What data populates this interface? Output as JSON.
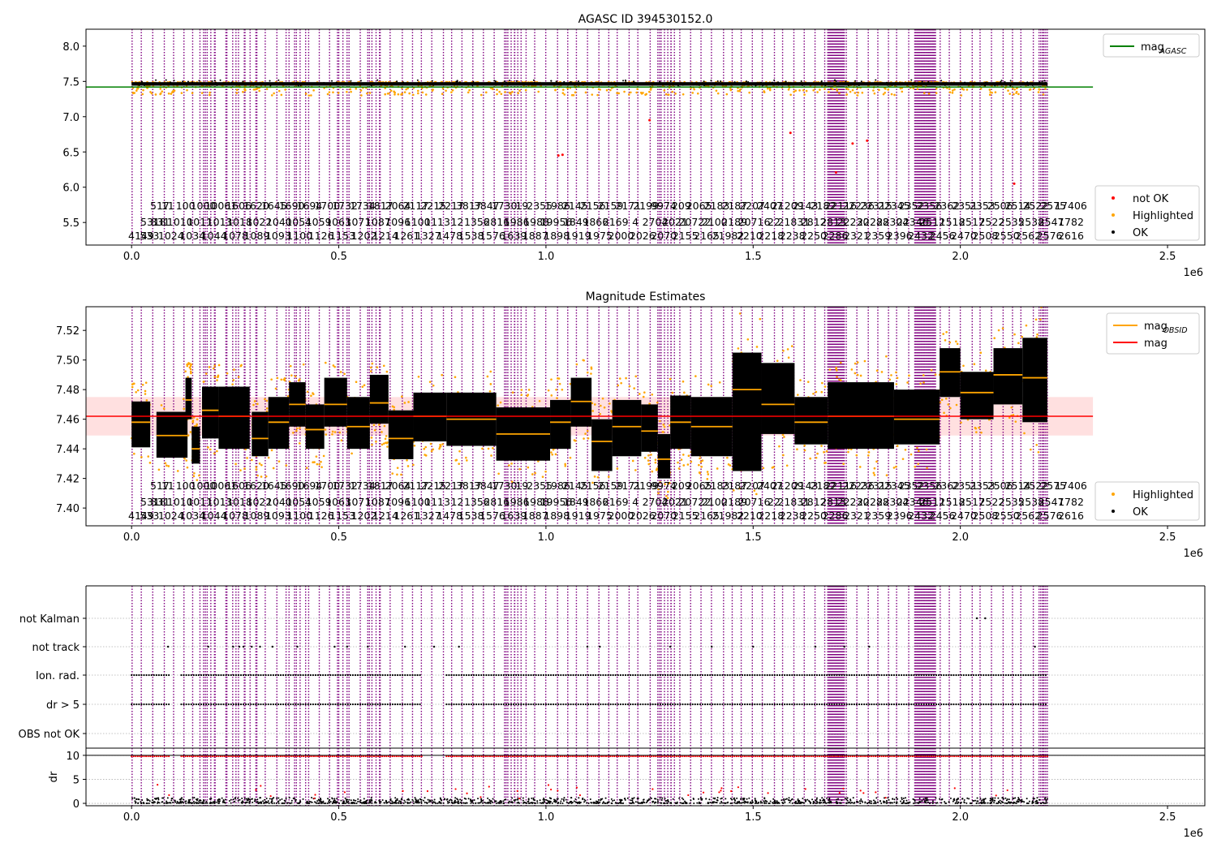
{
  "colors": {
    "ok": "#000000",
    "highlighted": "#ffa500",
    "not_ok": "#ff0000",
    "obsid_lines": "#800080",
    "mag_agasc": "#008000",
    "mag_obsid": "#ffa500",
    "mag": "#ff0000",
    "mag_band": "#ffcccc",
    "grid": "#b0b0b0"
  },
  "obsid_label_rows": {
    "row1": [
      "517",
      "11",
      "100",
      "1000",
      "10061",
      "1606",
      "1620",
      "1645",
      "1690",
      "1694",
      "1700",
      "1732",
      "1734",
      "1817",
      "2064",
      "2117",
      "2215",
      "2217",
      "3817",
      "3847",
      "1730",
      "19",
      "2355",
      "1986",
      "2145",
      "2156",
      "2159",
      "2171",
      "2199",
      "9974",
      "209",
      "2065",
      "2183",
      "2187",
      "2207",
      "2407",
      "21209",
      "2143",
      "2182",
      "22116",
      "22236",
      "22315",
      "22345",
      "2352",
      "2356",
      "2362",
      "2351",
      "2353",
      "2506",
      "2514",
      "2522",
      "2575",
      "17406"
    ],
    "row2": [
      "5318",
      "831",
      "1010",
      "1011",
      "1013",
      "1018",
      "1022",
      "1040",
      "1054",
      "1059",
      "1063",
      "1071",
      "1087",
      "1096",
      "1100",
      "1113",
      "12",
      "1356",
      "2816",
      "1986",
      "1988",
      "19956",
      "1849",
      "1866",
      "2169",
      "4",
      "2704",
      "2021",
      "20722",
      "2100",
      "2189",
      "20716",
      "22",
      "21831",
      "2812",
      "2813",
      "22230",
      "22288",
      "22304",
      "22346",
      "2512",
      "1518",
      "2517",
      "2522",
      "2535",
      "2538",
      "2547",
      "1782"
    ],
    "row3": [
      "4149",
      "533",
      "1024",
      "1034",
      "1044",
      "1078",
      "1089",
      "1093",
      "1100",
      "1126",
      "1153",
      "1202",
      "1214",
      "1261",
      "1327",
      "1478",
      "1538",
      "1576",
      "1639",
      "1887",
      "1898",
      "1919",
      "1975",
      "2000",
      "2026",
      "2070",
      "2155",
      "2165",
      "21982",
      "2210",
      "2218",
      "2238",
      "2250",
      "2286",
      "2321",
      "2359",
      "2396",
      "2432",
      "2456",
      "2470",
      "2508",
      "2550",
      "2562",
      "2576",
      "2616"
    ]
  },
  "chart_data": [
    {
      "type": "scatter",
      "title": "AGASC ID 394530152.0",
      "xlabel": "",
      "ylabel": "",
      "x_offset_text": "1e6",
      "xlim": [
        -110000,
        2590000
      ],
      "ylim": [
        5.18,
        8.24
      ],
      "xticks": [
        0,
        500000,
        1000000,
        1500000,
        2000000,
        2500000
      ],
      "xtick_labels": [
        "0.0",
        "0.5",
        "1.0",
        "1.5",
        "2.0",
        "2.5"
      ],
      "yticks": [
        5.5,
        6.0,
        6.5,
        7.0,
        7.5,
        8.0
      ],
      "ytick_labels": [
        "5.5",
        "6.0",
        "6.5",
        "7.0",
        "7.5",
        "8.0"
      ],
      "grid": false,
      "x_extent": [
        0,
        2210000
      ],
      "series": [
        {
          "name": "OK",
          "kind": "band",
          "y_low": 7.44,
          "y_high": 7.49
        },
        {
          "name": "Highlighted",
          "kind": "scatter_band",
          "y_low": 7.3,
          "y_high": 7.49
        },
        {
          "name": "not OK",
          "kind": "points",
          "x": [
            1030000,
            1040000,
            1250000,
            1590000,
            1700000,
            1740000,
            1775000,
            2130000
          ],
          "y": [
            6.45,
            6.46,
            6.95,
            6.77,
            6.21,
            6.62,
            6.66,
            6.05
          ]
        }
      ],
      "lines": [
        {
          "name": "mag_AGASC",
          "label_main": "mag",
          "label_sub": "AGASC",
          "y": 7.42,
          "x_range": [
            -110000,
            2320000
          ]
        }
      ],
      "legends": [
        {
          "placement": "upper right",
          "items": [
            {
              "label": "mag",
              "sub": "AGASC",
              "kind": "line",
              "color": "mag_agasc"
            }
          ]
        },
        {
          "placement": "lower right",
          "items": [
            {
              "label": "not OK",
              "kind": "dot",
              "color": "not_ok"
            },
            {
              "label": "Highlighted",
              "kind": "dot",
              "color": "highlighted"
            },
            {
              "label": "OK",
              "kind": "dot",
              "color": "ok"
            }
          ]
        }
      ]
    },
    {
      "type": "scatter",
      "title": "Magnitude Estimates",
      "xlabel": "",
      "ylabel": "",
      "x_offset_text": "1e6",
      "xlim": [
        -110000,
        2590000
      ],
      "ylim": [
        7.388,
        7.536
      ],
      "xticks": [
        0,
        500000,
        1000000,
        1500000,
        2000000,
        2500000
      ],
      "xtick_labels": [
        "0.0",
        "0.5",
        "1.0",
        "1.5",
        "2.0",
        "2.5"
      ],
      "yticks": [
        7.4,
        7.42,
        7.44,
        7.46,
        7.48,
        7.5,
        7.52
      ],
      "ytick_labels": [
        "7.40",
        "7.42",
        "7.44",
        "7.46",
        "7.48",
        "7.50",
        "7.52"
      ],
      "grid": false,
      "mag": 7.462,
      "mag_band": [
        7.449,
        7.475
      ],
      "segments": [
        {
          "x": [
            0,
            45000
          ],
          "mag": 7.458,
          "lo": 7.441,
          "hi": 7.472
        },
        {
          "x": [
            60000,
            135000
          ],
          "mag": 7.449,
          "lo": 7.434,
          "hi": 7.465
        },
        {
          "x": [
            130000,
            145000
          ],
          "mag": 7.473,
          "lo": 7.46,
          "hi": 7.488
        },
        {
          "x": [
            145000,
            165000
          ],
          "mag": 7.44,
          "lo": 7.43,
          "hi": 7.455
        },
        {
          "x": [
            170000,
            210000
          ],
          "mag": 7.466,
          "lo": 7.447,
          "hi": 7.482
        },
        {
          "x": [
            210000,
            285000
          ],
          "mag": 7.462,
          "lo": 7.44,
          "hi": 7.482
        },
        {
          "x": [
            290000,
            330000
          ],
          "mag": 7.447,
          "lo": 7.435,
          "hi": 7.465
        },
        {
          "x": [
            330000,
            380000
          ],
          "mag": 7.458,
          "lo": 7.44,
          "hi": 7.475
        },
        {
          "x": [
            380000,
            420000
          ],
          "mag": 7.47,
          "lo": 7.455,
          "hi": 7.485
        },
        {
          "x": [
            420000,
            465000
          ],
          "mag": 7.453,
          "lo": 7.44,
          "hi": 7.47
        },
        {
          "x": [
            465000,
            520000
          ],
          "mag": 7.47,
          "lo": 7.455,
          "hi": 7.488
        },
        {
          "x": [
            520000,
            575000
          ],
          "mag": 7.455,
          "lo": 7.44,
          "hi": 7.475
        },
        {
          "x": [
            575000,
            620000
          ],
          "mag": 7.471,
          "lo": 7.457,
          "hi": 7.49
        },
        {
          "x": [
            620000,
            680000
          ],
          "mag": 7.447,
          "lo": 7.433,
          "hi": 7.466
        },
        {
          "x": [
            680000,
            760000
          ],
          "mag": 7.462,
          "lo": 7.445,
          "hi": 7.478
        },
        {
          "x": [
            760000,
            880000
          ],
          "mag": 7.46,
          "lo": 7.442,
          "hi": 7.478
        },
        {
          "x": [
            880000,
            1010000
          ],
          "mag": 7.45,
          "lo": 7.432,
          "hi": 7.468
        },
        {
          "x": [
            1010000,
            1060000
          ],
          "mag": 7.458,
          "lo": 7.44,
          "hi": 7.473
        },
        {
          "x": [
            1060000,
            1110000
          ],
          "mag": 7.472,
          "lo": 7.455,
          "hi": 7.488
        },
        {
          "x": [
            1110000,
            1160000
          ],
          "mag": 7.445,
          "lo": 7.425,
          "hi": 7.46
        },
        {
          "x": [
            1160000,
            1230000
          ],
          "mag": 7.455,
          "lo": 7.435,
          "hi": 7.473
        },
        {
          "x": [
            1230000,
            1270000
          ],
          "mag": 7.452,
          "lo": 7.438,
          "hi": 7.47
        },
        {
          "x": [
            1270000,
            1300000
          ],
          "mag": 7.433,
          "lo": 7.42,
          "hi": 7.45
        },
        {
          "x": [
            1300000,
            1350000
          ],
          "mag": 7.458,
          "lo": 7.44,
          "hi": 7.476
        },
        {
          "x": [
            1350000,
            1450000
          ],
          "mag": 7.455,
          "lo": 7.435,
          "hi": 7.475
        },
        {
          "x": [
            1450000,
            1520000
          ],
          "mag": 7.48,
          "lo": 7.425,
          "hi": 7.505
        },
        {
          "x": [
            1520000,
            1600000
          ],
          "mag": 7.47,
          "lo": 7.45,
          "hi": 7.498
        },
        {
          "x": [
            1600000,
            1680000
          ],
          "mag": 7.458,
          "lo": 7.443,
          "hi": 7.475
        },
        {
          "x": [
            1680000,
            1840000
          ],
          "mag": 7.462,
          "lo": 7.44,
          "hi": 7.485
        },
        {
          "x": [
            1840000,
            1950000
          ],
          "mag": 7.46,
          "lo": 7.443,
          "hi": 7.48
        },
        {
          "x": [
            1950000,
            2000000
          ],
          "mag": 7.492,
          "lo": 7.475,
          "hi": 7.508
        },
        {
          "x": [
            2000000,
            2080000
          ],
          "mag": 7.478,
          "lo": 7.46,
          "hi": 7.492
        },
        {
          "x": [
            2080000,
            2150000
          ],
          "mag": 7.49,
          "lo": 7.47,
          "hi": 7.508
        },
        {
          "x": [
            2150000,
            2210000
          ],
          "mag": 7.488,
          "lo": 7.458,
          "hi": 7.515
        }
      ],
      "legends": [
        {
          "placement": "upper right",
          "items": [
            {
              "label": "mag",
              "sub": "OBSID",
              "kind": "line",
              "color": "mag_obsid"
            },
            {
              "label": "mag",
              "sub": "",
              "kind": "line",
              "color": "mag"
            }
          ]
        },
        {
          "placement": "lower right",
          "items": [
            {
              "label": "Highlighted",
              "kind": "dot",
              "color": "highlighted"
            },
            {
              "label": "OK",
              "kind": "dot",
              "color": "ok"
            }
          ]
        }
      ]
    },
    {
      "type": "scatter",
      "title": "",
      "xlabel": "",
      "ylabel": "",
      "x_offset_text": "1e6",
      "xlim": [
        -110000,
        2590000
      ],
      "xticks": [
        0,
        500000,
        1000000,
        1500000,
        2000000,
        2500000
      ],
      "xtick_labels": [
        "0.0",
        "0.5",
        "1.0",
        "1.5",
        "2.0",
        "2.5"
      ],
      "categories": [
        "not Kalman",
        "not track",
        "Ion. rad.",
        "dr > 5",
        "OBS not OK"
      ],
      "grid": true,
      "flag_rows": {
        "not Kalman": {
          "x": [
            2040000,
            2060000
          ]
        },
        "not track": {
          "x": [
            88000,
            185000,
            245000,
            260000,
            270000,
            290000,
            310000,
            340000,
            400000,
            490000,
            520000,
            570000,
            660000,
            730000,
            790000,
            1100000,
            1130000,
            1300000,
            1400000,
            1500000,
            1650000,
            1720000,
            1780000,
            2180000
          ]
        },
        "Ion. rad.": {
          "x_ranges": [
            [
              0,
              90000
            ],
            [
              120000,
              700000
            ],
            [
              760000,
              2210000
            ]
          ]
        },
        "dr > 5": {
          "x_ranges": [
            [
              0,
              90000
            ],
            [
              120000,
              700000
            ],
            [
              760000,
              2210000
            ]
          ]
        },
        "OBS not OK": {
          "x": []
        }
      }
    },
    {
      "type": "scatter",
      "title": "",
      "xlabel": "",
      "ylabel": "dr",
      "x_offset_text": "1e6",
      "xlim": [
        -110000,
        2590000
      ],
      "ylim": [
        -0.5,
        11.5
      ],
      "xticks": [
        0,
        500000,
        1000000,
        1500000,
        2000000,
        2500000
      ],
      "xtick_labels": [
        "0.0",
        "0.5",
        "1.0",
        "1.5",
        "2.0",
        "2.5"
      ],
      "yticks": [
        0,
        5,
        10
      ],
      "ytick_labels": [
        "0",
        "5",
        "10"
      ],
      "grid": true,
      "hline": 10,
      "series": [
        {
          "name": "OK",
          "kind": "band",
          "y_low": 0,
          "y_high": 1.2
        },
        {
          "name": "not OK",
          "kind": "row",
          "y": 9.8,
          "x_ranges": [
            [
              0,
              90000
            ],
            [
              120000,
              700000
            ],
            [
              760000,
              2210000
            ]
          ]
        }
      ]
    }
  ]
}
